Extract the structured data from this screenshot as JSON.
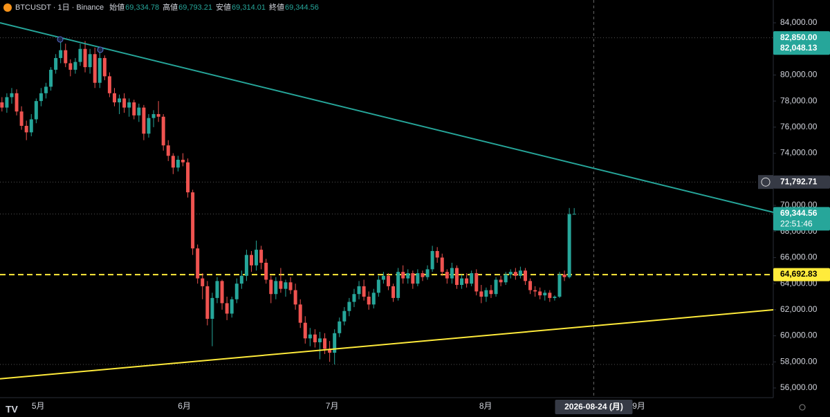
{
  "chart_data": {
    "type": "candlestick",
    "header": {
      "symbol": "BTCUSDT · 1日 · Binance",
      "fields": [
        {
          "label": "始値",
          "value": "69,334.78"
        },
        {
          "label": "高値",
          "value": "69,793.21"
        },
        {
          "label": "安値",
          "value": "69,314.01"
        },
        {
          "label": "終値",
          "value": "69,344.56"
        }
      ]
    },
    "up_color": "#26a69a",
    "down_color": "#ef5350",
    "candles": [
      [
        77900,
        78300,
        77200,
        77500
      ],
      [
        77500,
        78600,
        77100,
        78300
      ],
      [
        78300,
        79000,
        77800,
        78600
      ],
      [
        78600,
        78900,
        76900,
        77200
      ],
      [
        77200,
        77600,
        75800,
        76100
      ],
      [
        76100,
        76500,
        75000,
        75600
      ],
      [
        75600,
        77000,
        75300,
        76600
      ],
      [
        76600,
        78200,
        76300,
        78000
      ],
      [
        78000,
        79000,
        77600,
        78600
      ],
      [
        78600,
        79400,
        78200,
        79100
      ],
      [
        79100,
        80600,
        78800,
        80400
      ],
      [
        80400,
        81600,
        80100,
        81300
      ],
      [
        81300,
        82850,
        80900,
        81900
      ],
      [
        81900,
        82400,
        80600,
        80900
      ],
      [
        80900,
        81200,
        79900,
        80400
      ],
      [
        80400,
        81300,
        80100,
        81000
      ],
      [
        81000,
        82400,
        80700,
        82000
      ],
      [
        82000,
        82600,
        80200,
        80600
      ],
      [
        80600,
        82000,
        80100,
        81600
      ],
      [
        81600,
        82100,
        79000,
        79400
      ],
      [
        79400,
        81700,
        79000,
        81300
      ],
      [
        81300,
        81500,
        79600,
        79900
      ],
      [
        79900,
        80200,
        78300,
        78600
      ],
      [
        78600,
        79000,
        77600,
        77900
      ],
      [
        77900,
        78500,
        77000,
        78200
      ],
      [
        78200,
        78600,
        77100,
        77500
      ],
      [
        77500,
        78200,
        76800,
        77900
      ],
      [
        77900,
        78100,
        76600,
        76900
      ],
      [
        76900,
        77800,
        76400,
        77500
      ],
      [
        77500,
        77700,
        75000,
        75500
      ],
      [
        75500,
        77000,
        75200,
        76700
      ],
      [
        76700,
        77300,
        76000,
        77000
      ],
      [
        77000,
        78000,
        76400,
        76800
      ],
      [
        76800,
        77000,
        74200,
        74600
      ],
      [
        74600,
        75000,
        73400,
        73800
      ],
      [
        73800,
        74000,
        72400,
        72900
      ],
      [
        72900,
        73800,
        72600,
        73500
      ],
      [
        73500,
        74000,
        73000,
        73300
      ],
      [
        73300,
        73600,
        70600,
        71000
      ],
      [
        71000,
        71200,
        66200,
        66700
      ],
      [
        66700,
        67000,
        64000,
        64400
      ],
      [
        64400,
        64800,
        62800,
        63800
      ],
      [
        63800,
        64200,
        60800,
        61300
      ],
      [
        61300,
        63300,
        59200,
        62900
      ],
      [
        62900,
        64500,
        62500,
        64200
      ],
      [
        64200,
        64300,
        62000,
        62500
      ],
      [
        62500,
        63000,
        61200,
        61700
      ],
      [
        61700,
        63000,
        61400,
        62800
      ],
      [
        62800,
        64400,
        62500,
        64000
      ],
      [
        64000,
        65000,
        63600,
        64600
      ],
      [
        64600,
        66600,
        64200,
        66200
      ],
      [
        66200,
        66500,
        64900,
        65400
      ],
      [
        65400,
        67300,
        65000,
        66600
      ],
      [
        66600,
        66900,
        65100,
        65600
      ],
      [
        65600,
        65900,
        64000,
        64300
      ],
      [
        64300,
        64600,
        62500,
        63200
      ],
      [
        63200,
        64500,
        62800,
        64200
      ],
      [
        64200,
        65200,
        63300,
        63600
      ],
      [
        63600,
        64300,
        63000,
        64100
      ],
      [
        64100,
        64500,
        63200,
        63500
      ],
      [
        63500,
        64000,
        62000,
        62400
      ],
      [
        62400,
        62800,
        60600,
        61000
      ],
      [
        61000,
        61500,
        59400,
        59800
      ],
      [
        59800,
        60600,
        59200,
        60100
      ],
      [
        60100,
        60500,
        59100,
        59500
      ],
      [
        59500,
        60300,
        58200,
        59800
      ],
      [
        59800,
        60200,
        58600,
        59000
      ],
      [
        59000,
        59600,
        58000,
        58700
      ],
      [
        58700,
        60500,
        57800,
        60200
      ],
      [
        60200,
        61400,
        59900,
        61100
      ],
      [
        61100,
        62200,
        60800,
        61900
      ],
      [
        61900,
        62900,
        61500,
        62600
      ],
      [
        62600,
        63600,
        62200,
        63200
      ],
      [
        63200,
        64200,
        62800,
        63800
      ],
      [
        63800,
        64300,
        62700,
        63000
      ],
      [
        63000,
        63400,
        62000,
        62400
      ],
      [
        62400,
        63600,
        62100,
        63300
      ],
      [
        63300,
        64600,
        63000,
        64300
      ],
      [
        64300,
        64900,
        64000,
        64600
      ],
      [
        64600,
        64800,
        63500,
        63800
      ],
      [
        63800,
        64000,
        62600,
        62900
      ],
      [
        62900,
        65200,
        62700,
        64900
      ],
      [
        64900,
        65400,
        64000,
        64400
      ],
      [
        64400,
        65100,
        64000,
        64800
      ],
      [
        64800,
        65000,
        63600,
        64000
      ],
      [
        64000,
        65100,
        63800,
        64800
      ],
      [
        64800,
        65000,
        64200,
        64500
      ],
      [
        64500,
        65400,
        64300,
        65100
      ],
      [
        65100,
        66900,
        64900,
        66500
      ],
      [
        66500,
        66800,
        65600,
        66000
      ],
      [
        66000,
        66300,
        64600,
        64900
      ],
      [
        64900,
        65100,
        64000,
        64400
      ],
      [
        64400,
        65600,
        64000,
        65200
      ],
      [
        65200,
        65400,
        63600,
        63900
      ],
      [
        63900,
        64700,
        63600,
        64400
      ],
      [
        64400,
        64800,
        63700,
        64000
      ],
      [
        64000,
        65000,
        63800,
        64800
      ],
      [
        64800,
        65100,
        63100,
        63400
      ],
      [
        63400,
        63900,
        62500,
        63000
      ],
      [
        63000,
        63700,
        62600,
        63500
      ],
      [
        63500,
        63900,
        62900,
        63200
      ],
      [
        63200,
        64500,
        63000,
        64300
      ],
      [
        64300,
        64600,
        63800,
        64100
      ],
      [
        64100,
        64900,
        63900,
        64700
      ],
      [
        64700,
        65100,
        64400,
        64900
      ],
      [
        64900,
        65200,
        64300,
        64600
      ],
      [
        64600,
        65300,
        64400,
        65000
      ],
      [
        65000,
        65200,
        63900,
        64200
      ],
      [
        64200,
        64400,
        63200,
        63500
      ],
      [
        63500,
        63800,
        63000,
        63400
      ],
      [
        63400,
        63700,
        62800,
        63100
      ],
      [
        63100,
        63500,
        62700,
        63300
      ],
      [
        63300,
        63500,
        62600,
        62900
      ],
      [
        62900,
        63100,
        62700,
        63000
      ],
      [
        63000,
        64900,
        62900,
        64700
      ],
      [
        64700,
        65000,
        64200,
        64500
      ],
      [
        64500,
        69800,
        64400,
        69330
      ],
      [
        69334.78,
        69793.21,
        69314.01,
        69344.56
      ]
    ],
    "xlim": [
      -0.4,
      157.7
    ],
    "xticks": [
      {
        "value": 7.4,
        "label": "5月"
      },
      {
        "value": 37.3,
        "label": "6月"
      },
      {
        "value": 67.5,
        "label": "7月"
      },
      {
        "value": 98.9,
        "label": "8月"
      },
      {
        "value": 130.2,
        "label": "9月"
      }
    ],
    "ylim": [
      55257,
      85750
    ],
    "yticks": [
      {
        "value": 56000,
        "label": "56,000.00"
      },
      {
        "value": 58000,
        "label": "58,000.00"
      },
      {
        "value": 60000,
        "label": "60,000.00"
      },
      {
        "value": 62000,
        "label": "62,000.00"
      },
      {
        "value": 64000,
        "label": "64,000.00"
      },
      {
        "value": 66000,
        "label": "66,000.00"
      },
      {
        "value": 68000,
        "label": "68,000.00"
      },
      {
        "value": 70000,
        "label": "70,000.00"
      },
      {
        "value": 72000,
        "label": "72,000.00"
      },
      {
        "value": 74000,
        "label": "74,000.00"
      },
      {
        "value": 76000,
        "label": "76,000.00"
      },
      {
        "value": 78000,
        "label": "78,000.00"
      },
      {
        "value": 80000,
        "label": "80,000.00"
      },
      {
        "value": 82000,
        "label": "82,000.00"
      },
      {
        "value": 84000,
        "label": "84,000.00"
      }
    ],
    "trend_lines": [
      {
        "color": "#26a69a",
        "values": [
          84000,
          69470
        ]
      },
      {
        "color": "#ffeb3b",
        "values": [
          56700,
          61990
        ]
      }
    ],
    "levels": [
      {
        "value": 64692.83,
        "color": "#ffeb3b",
        "style": "dashed"
      },
      {
        "value": 57800,
        "color": "#555555",
        "style": "dotted"
      }
    ],
    "price_tags": [
      {
        "value": 82850,
        "label": "82,850.00",
        "bg": "#26a69a",
        "fg": "#ffffff",
        "line": true
      },
      {
        "value": 82048.13,
        "label": "82,048.13",
        "bg": "#26a69a",
        "fg": "#ffffff",
        "line": false
      },
      {
        "value": 71792.71,
        "label": "71,792.71",
        "bg": "#363a45",
        "fg": "#ffffff",
        "line": true
      },
      {
        "value": 69344.56,
        "label": "69,344.56",
        "sub": "22:51:46",
        "bg": "#26a69a",
        "fg": "#ffffff",
        "line": true
      },
      {
        "value": 64692.83,
        "label": "64,692.83",
        "bg": "#ffeb3b",
        "fg": "#000000",
        "line": false
      }
    ],
    "cursor": {
      "x": 121,
      "label": "2026-08-24 (月)"
    }
  }
}
